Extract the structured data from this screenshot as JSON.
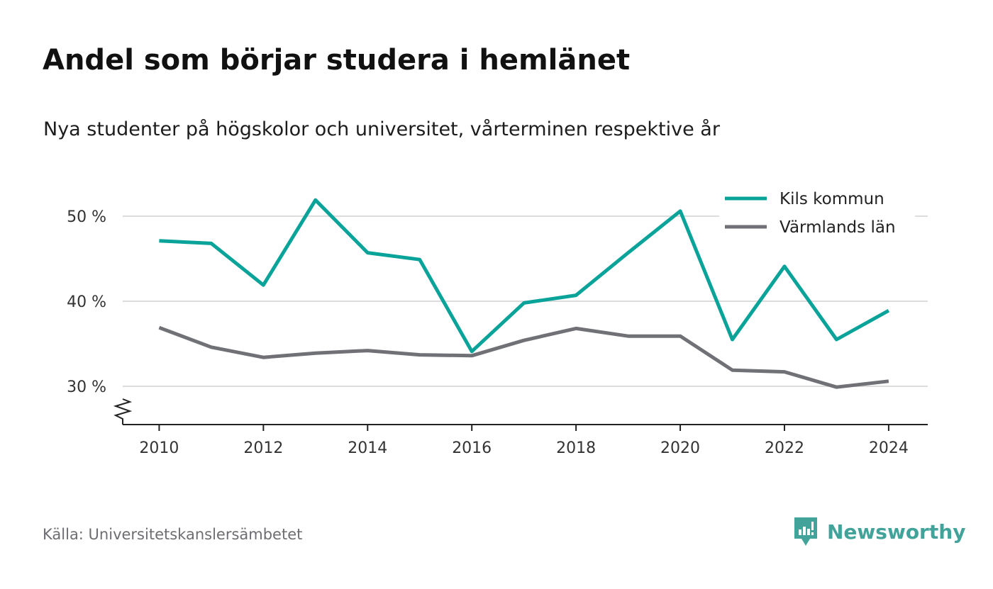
{
  "header": {
    "title": "Andel som börjar studera i hemlänet",
    "subtitle": "Nya studenter på högskolor och universitet, vårterminen respektive år"
  },
  "footer": {
    "source": "Källa: Universitetskanslersämbetet",
    "brand": "Newsworthy"
  },
  "colors": {
    "kils": "#0aa39a",
    "varmland": "#707077",
    "grid": "#dcdcdc",
    "axis": "#222222",
    "tick_text": "#333333",
    "brand": "#42a39a"
  },
  "chart_data": {
    "type": "line",
    "x": [
      2010,
      2011,
      2012,
      2013,
      2014,
      2015,
      2016,
      2017,
      2018,
      2019,
      2020,
      2021,
      2022,
      2023,
      2024
    ],
    "series": [
      {
        "name": "Kils kommun",
        "color": "#0aa39a",
        "values": [
          47.1,
          46.8,
          41.9,
          51.9,
          45.7,
          44.9,
          34.1,
          39.8,
          40.7,
          45.7,
          50.6,
          35.5,
          44.1,
          35.5,
          38.9
        ]
      },
      {
        "name": "Värmlands län",
        "color": "#707077",
        "values": [
          36.9,
          34.6,
          33.4,
          33.9,
          34.2,
          33.7,
          33.6,
          35.4,
          36.8,
          35.9,
          35.9,
          31.9,
          31.7,
          29.9,
          30.6
        ]
      }
    ],
    "x_ticks": [
      2010,
      2012,
      2014,
      2016,
      2018,
      2020,
      2022,
      2024
    ],
    "y_ticks": [
      30,
      40,
      50
    ],
    "y_tick_labels": [
      "30 %",
      "40 %",
      "50 %"
    ],
    "ylim": [
      25.5,
      55
    ],
    "xlim": [
      2009.3,
      2024.75
    ],
    "grid": true,
    "axis_break": true,
    "legend_position": "top-right"
  }
}
